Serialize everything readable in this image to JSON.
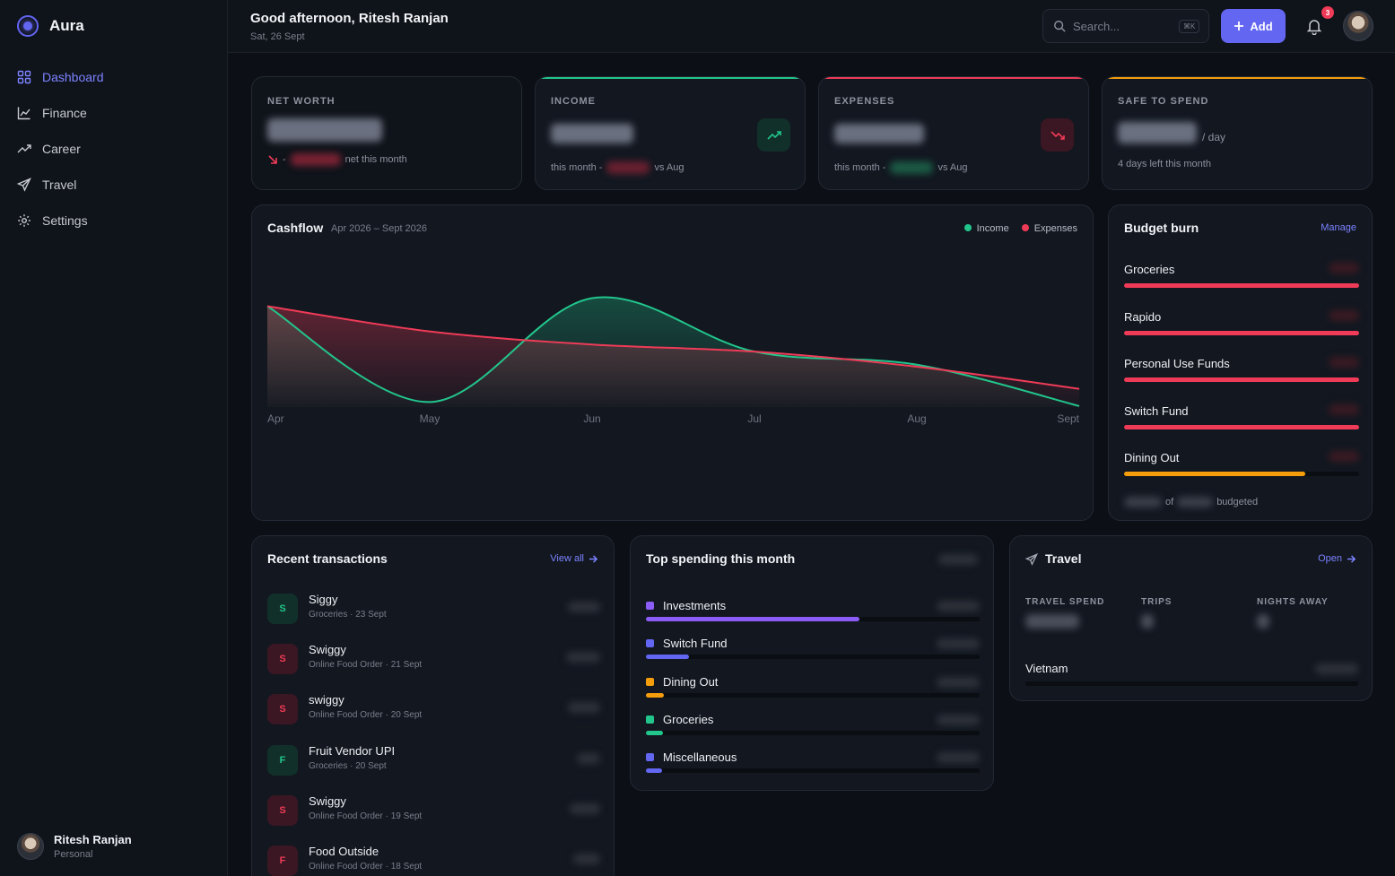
{
  "app": {
    "name": "Aura"
  },
  "nav": [
    {
      "label": "Dashboard",
      "icon": "grid-icon",
      "active": true
    },
    {
      "label": "Finance",
      "icon": "line-chart-icon"
    },
    {
      "label": "Career",
      "icon": "trend-icon"
    },
    {
      "label": "Travel",
      "icon": "plane-icon"
    },
    {
      "label": "Settings",
      "icon": "gear-icon"
    }
  ],
  "user": {
    "name": "Ritesh Ranjan",
    "role": "Personal"
  },
  "header": {
    "greeting": "Good afternoon, Ritesh Ranjan",
    "date": "Sat, 26 Sept",
    "search_placeholder": "Search...",
    "search_shortcut": "⌘K",
    "add_label": "Add",
    "notifications": "3"
  },
  "kpis": {
    "net_worth": {
      "label": "NET WORTH",
      "suffix": "net this month"
    },
    "income": {
      "label": "INCOME",
      "prefix": "this month -",
      "suffix": "vs Aug",
      "accent": "#22c58b"
    },
    "expenses": {
      "label": "EXPENSES",
      "prefix": "this month -",
      "suffix": "vs Aug",
      "accent": "#ef3b57"
    },
    "safe": {
      "label": "SAFE TO SPEND",
      "unit": "/ day",
      "sub": "4 days left this month",
      "accent": "#f59e0b"
    }
  },
  "cashflow": {
    "title": "Cashflow",
    "range": "Apr 2026 – Sept 2026",
    "legend": {
      "income": "Income",
      "expenses": "Expenses"
    }
  },
  "chart_data": {
    "type": "area",
    "title": "Cashflow",
    "categories": [
      "Apr",
      "May",
      "Jun",
      "Jul",
      "Aug",
      "Sept"
    ],
    "series": [
      {
        "name": "Income",
        "color": "#22c58b",
        "values": [
          100,
          5,
          108,
          55,
          42,
          1
        ]
      },
      {
        "name": "Expenses",
        "color": "#ef3b57",
        "values": [
          100,
          75,
          62,
          55,
          40,
          18
        ]
      }
    ],
    "ylim": [
      0,
      120
    ],
    "grid": false,
    "legend": "top-right"
  },
  "budget": {
    "title": "Budget burn",
    "manage": "Manage",
    "of": "of",
    "budgeted": "budgeted",
    "items": [
      {
        "name": "Groceries",
        "progress": 1.0,
        "color": "#ef3b57"
      },
      {
        "name": "Rapido",
        "progress": 1.0,
        "color": "#ef3b57"
      },
      {
        "name": "Personal Use Funds",
        "progress": 1.0,
        "color": "#ef3b57"
      },
      {
        "name": "Switch Fund",
        "progress": 1.0,
        "color": "#ef3b57"
      },
      {
        "name": "Dining Out",
        "progress": 0.77,
        "color": "#f59e0b"
      }
    ]
  },
  "transactions": {
    "title": "Recent transactions",
    "view_all": "View all",
    "items": [
      {
        "initial": "S",
        "name": "Siggy",
        "sub": "Groceries · 23 Sept",
        "tone": "green"
      },
      {
        "initial": "S",
        "name": "Swiggy",
        "sub": "Online Food Order · 21 Sept",
        "tone": "red"
      },
      {
        "initial": "S",
        "name": "swiggy",
        "sub": "Online Food Order · 20 Sept",
        "tone": "red"
      },
      {
        "initial": "F",
        "name": "Fruit Vendor UPI",
        "sub": "Groceries · 20 Sept",
        "tone": "green"
      },
      {
        "initial": "S",
        "name": "Swiggy",
        "sub": "Online Food Order · 19 Sept",
        "tone": "red"
      },
      {
        "initial": "F",
        "name": "Food Outside",
        "sub": "Online Food Order · 18 Sept",
        "tone": "red"
      }
    ]
  },
  "spending": {
    "title": "Top spending this month",
    "items": [
      {
        "name": "Investments",
        "progress": 0.64,
        "color": "#8b5cf6"
      },
      {
        "name": "Switch Fund",
        "progress": 0.13,
        "color": "#6366f1"
      },
      {
        "name": "Dining Out",
        "progress": 0.055,
        "color": "#f59e0b"
      },
      {
        "name": "Groceries",
        "progress": 0.05,
        "color": "#22c58b"
      },
      {
        "name": "Miscellaneous",
        "progress": 0.048,
        "color": "#6366f1"
      }
    ]
  },
  "travel": {
    "title": "Travel",
    "open": "Open",
    "stats": [
      "TRAVEL SPEND",
      "TRIPS",
      "NIGHTS AWAY"
    ],
    "destination": "Vietnam"
  }
}
